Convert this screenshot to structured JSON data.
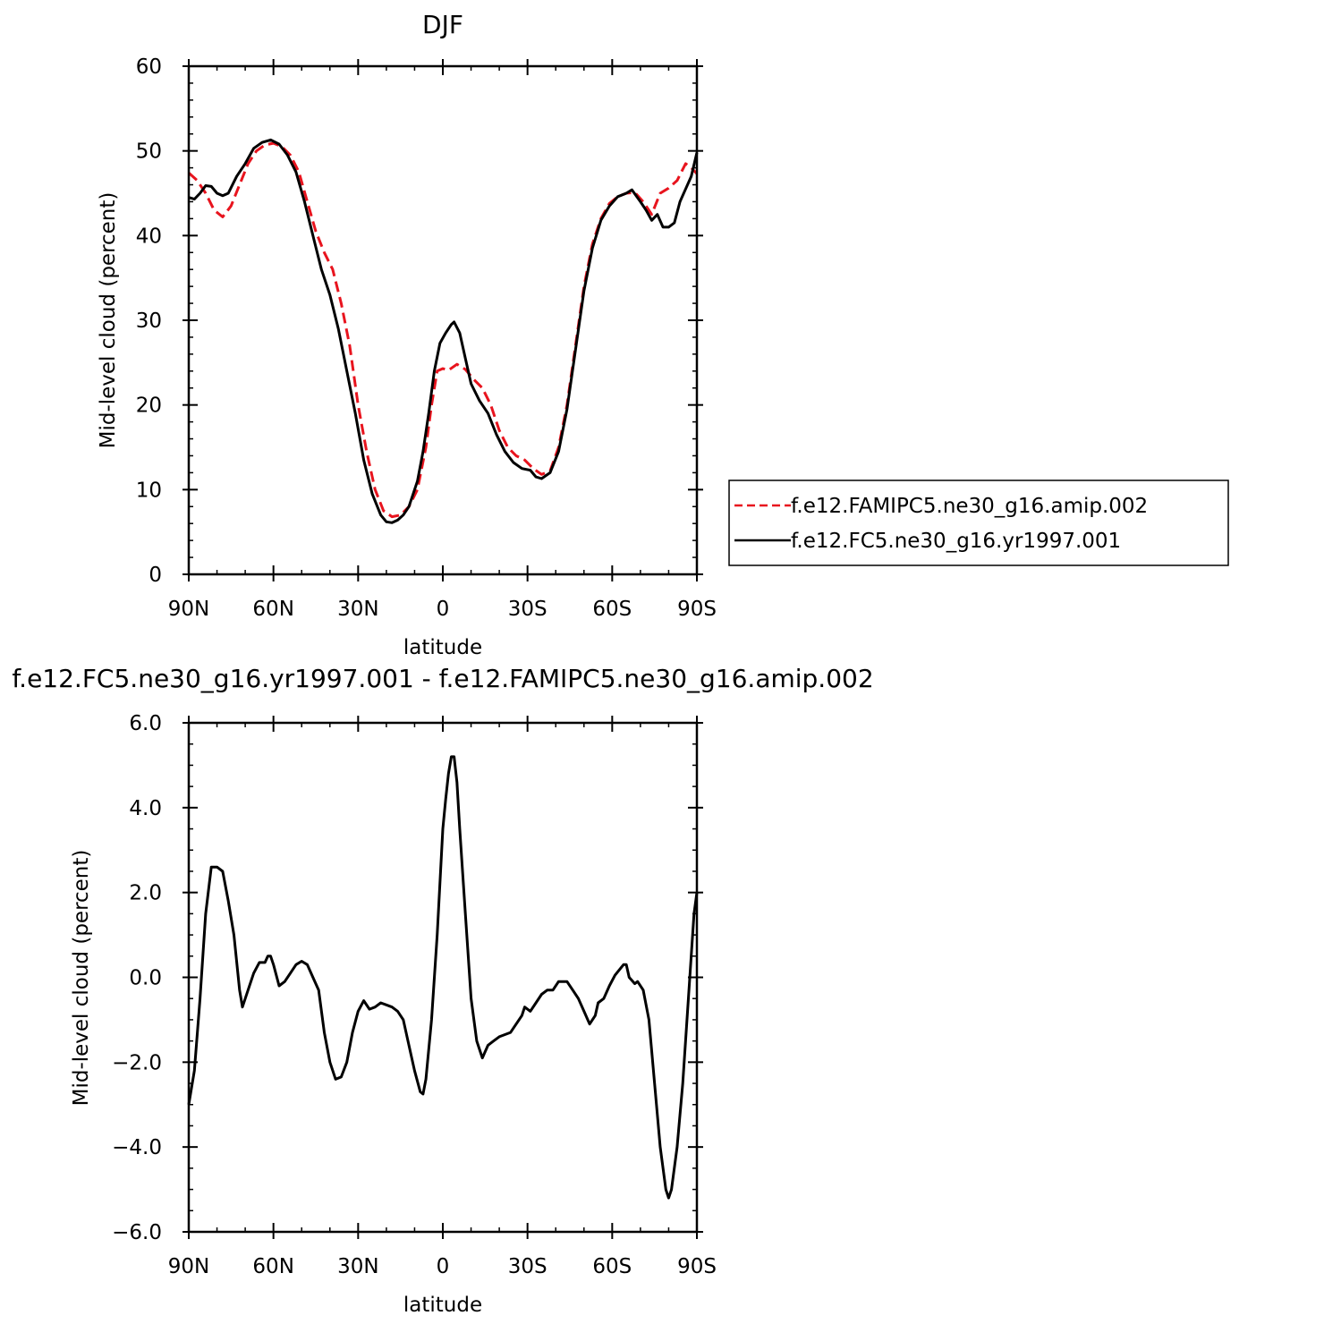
{
  "chart_data": [
    {
      "type": "line",
      "title": "DJF",
      "xlabel": "latitude",
      "ylabel": "Mid-level cloud (percent)",
      "xlim": [
        -90,
        90
      ],
      "ylim": [
        0,
        60
      ],
      "xticks": [
        -90,
        -60,
        -30,
        0,
        30,
        60,
        90
      ],
      "xtick_labels": [
        "90N",
        "60N",
        "30N",
        "0",
        "30S",
        "60S",
        "90S"
      ],
      "yticks": [
        0,
        10,
        20,
        30,
        40,
        50,
        60
      ],
      "ytick_labels": [
        "0",
        "10",
        "20",
        "30",
        "40",
        "50",
        "60"
      ],
      "legend_position": "right",
      "series": [
        {
          "name": "f.e12.FAMIPC5.ne30_g16.amip.002",
          "color": "#e8141e",
          "dash": "dashed",
          "points": [
            [
              -90,
              47.4
            ],
            [
              -87,
              46.5
            ],
            [
              -84,
              45.0
            ],
            [
              -81,
              43.0
            ],
            [
              -78,
              42.2
            ],
            [
              -75,
              43.5
            ],
            [
              -72,
              46.0
            ],
            [
              -69,
              48.5
            ],
            [
              -66,
              50.0
            ],
            [
              -63,
              50.7
            ],
            [
              -60,
              50.9
            ],
            [
              -57,
              50.5
            ],
            [
              -54,
              49.5
            ],
            [
              -51,
              47.5
            ],
            [
              -48,
              44.0
            ],
            [
              -45,
              40.5
            ],
            [
              -42,
              38.0
            ],
            [
              -39,
              36.0
            ],
            [
              -36,
              32.0
            ],
            [
              -33,
              27.0
            ],
            [
              -30,
              20.0
            ],
            [
              -27,
              14.5
            ],
            [
              -24,
              10.0
            ],
            [
              -21,
              7.5
            ],
            [
              -18,
              6.8
            ],
            [
              -15,
              7.0
            ],
            [
              -12,
              8.0
            ],
            [
              -9,
              10.0
            ],
            [
              -6,
              15.0
            ],
            [
              -4,
              20.0
            ],
            [
              -2,
              24.0
            ],
            [
              0,
              24.3
            ],
            [
              2,
              24.1
            ],
            [
              5,
              24.8
            ],
            [
              8,
              24.2
            ],
            [
              11,
              23.0
            ],
            [
              14,
              22.0
            ],
            [
              17,
              20.0
            ],
            [
              20,
              17.0
            ],
            [
              23,
              15.0
            ],
            [
              26,
              14.0
            ],
            [
              29,
              13.5
            ],
            [
              32,
              12.5
            ],
            [
              35,
              11.8
            ],
            [
              38,
              12.2
            ],
            [
              41,
              15.0
            ],
            [
              44,
              20.0
            ],
            [
              47,
              27.0
            ],
            [
              50,
              34.0
            ],
            [
              53,
              39.0
            ],
            [
              56,
              42.0
            ],
            [
              59,
              43.8
            ],
            [
              62,
              44.6
            ],
            [
              65,
              45.0
            ],
            [
              68,
              45.1
            ],
            [
              71,
              44.0
            ],
            [
              74,
              42.5
            ],
            [
              77,
              45.0
            ],
            [
              80,
              45.6
            ],
            [
              83,
              46.5
            ],
            [
              86,
              48.5
            ],
            [
              88,
              48.0
            ],
            [
              90,
              47.3
            ]
          ]
        },
        {
          "name": "f.e12.FC5.ne30_g16.yr1997.001",
          "color": "#000000",
          "dash": "solid",
          "points": [
            [
              -90,
              44.5
            ],
            [
              -88,
              44.3
            ],
            [
              -86,
              45.0
            ],
            [
              -84,
              45.9
            ],
            [
              -82,
              45.8
            ],
            [
              -80,
              45.0
            ],
            [
              -78,
              44.7
            ],
            [
              -76,
              45.0
            ],
            [
              -73,
              47.0
            ],
            [
              -70,
              48.5
            ],
            [
              -67,
              50.3
            ],
            [
              -64,
              51.0
            ],
            [
              -61,
              51.3
            ],
            [
              -58,
              50.8
            ],
            [
              -55,
              49.5
            ],
            [
              -52,
              47.5
            ],
            [
              -49,
              44.0
            ],
            [
              -46,
              40.0
            ],
            [
              -43,
              36.0
            ],
            [
              -40,
              33.0
            ],
            [
              -37,
              29.0
            ],
            [
              -34,
              24.0
            ],
            [
              -31,
              19.0
            ],
            [
              -28,
              13.5
            ],
            [
              -25,
              9.5
            ],
            [
              -22,
              7.0
            ],
            [
              -20,
              6.2
            ],
            [
              -18,
              6.1
            ],
            [
              -16,
              6.4
            ],
            [
              -14,
              7.0
            ],
            [
              -12,
              8.0
            ],
            [
              -9,
              11.0
            ],
            [
              -7,
              14.5
            ],
            [
              -5,
              19.0
            ],
            [
              -3,
              24.0
            ],
            [
              -1,
              27.3
            ],
            [
              1,
              28.5
            ],
            [
              3,
              29.5
            ],
            [
              4,
              29.8
            ],
            [
              6,
              28.5
            ],
            [
              8,
              25.5
            ],
            [
              10,
              22.5
            ],
            [
              13,
              20.5
            ],
            [
              16,
              19.0
            ],
            [
              19,
              16.5
            ],
            [
              22,
              14.5
            ],
            [
              25,
              13.2
            ],
            [
              28,
              12.5
            ],
            [
              31,
              12.3
            ],
            [
              33,
              11.5
            ],
            [
              35,
              11.3
            ],
            [
              38,
              12.0
            ],
            [
              41,
              14.5
            ],
            [
              44,
              19.5
            ],
            [
              47,
              26.5
            ],
            [
              50,
              33.5
            ],
            [
              53,
              38.5
            ],
            [
              56,
              41.8
            ],
            [
              59,
              43.5
            ],
            [
              62,
              44.6
            ],
            [
              65,
              45.0
            ],
            [
              67,
              45.4
            ],
            [
              70,
              44.0
            ],
            [
              72,
              43.0
            ],
            [
              74,
              41.8
            ],
            [
              76,
              42.5
            ],
            [
              78,
              41.0
            ],
            [
              80,
              41.0
            ],
            [
              82,
              41.5
            ],
            [
              84,
              44.0
            ],
            [
              86,
              45.5
            ],
            [
              88,
              47.0
            ],
            [
              90,
              49.8
            ]
          ]
        }
      ]
    },
    {
      "type": "line",
      "title": "f.e12.FC5.ne30_g16.yr1997.001 - f.e12.FAMIPC5.ne30_g16.amip.002",
      "xlabel": "latitude",
      "ylabel": "Mid-level cloud (percent)",
      "xlim": [
        -90,
        90
      ],
      "ylim": [
        -6,
        6
      ],
      "xticks": [
        -90,
        -60,
        -30,
        0,
        30,
        60,
        90
      ],
      "xtick_labels": [
        "90N",
        "60N",
        "30N",
        "0",
        "30S",
        "60S",
        "90S"
      ],
      "yticks": [
        -6,
        -4,
        -2,
        0,
        2,
        4,
        6
      ],
      "ytick_labels": [
        "−6.0",
        "−4.0",
        "−2.0",
        "0.0",
        "2.0",
        "4.0",
        "6.0"
      ],
      "series": [
        {
          "color": "#000000",
          "dash": "solid",
          "points": [
            [
              -90,
              -3.0
            ],
            [
              -88,
              -2.2
            ],
            [
              -86,
              -0.5
            ],
            [
              -84,
              1.5
            ],
            [
              -82,
              2.6
            ],
            [
              -80,
              2.6
            ],
            [
              -78,
              2.5
            ],
            [
              -76,
              1.8
            ],
            [
              -74,
              1.0
            ],
            [
              -72,
              -0.3
            ],
            [
              -71,
              -0.7
            ],
            [
              -69,
              -0.3
            ],
            [
              -67,
              0.1
            ],
            [
              -65,
              0.35
            ],
            [
              -63,
              0.35
            ],
            [
              -62,
              0.5
            ],
            [
              -61,
              0.5
            ],
            [
              -60,
              0.3
            ],
            [
              -58,
              -0.2
            ],
            [
              -56,
              -0.1
            ],
            [
              -54,
              0.1
            ],
            [
              -52,
              0.3
            ],
            [
              -50,
              0.38
            ],
            [
              -48,
              0.3
            ],
            [
              -46,
              0.0
            ],
            [
              -44,
              -0.3
            ],
            [
              -42,
              -1.3
            ],
            [
              -40,
              -2.0
            ],
            [
              -38,
              -2.4
            ],
            [
              -36,
              -2.35
            ],
            [
              -34,
              -2.0
            ],
            [
              -32,
              -1.3
            ],
            [
              -30,
              -0.8
            ],
            [
              -28,
              -0.55
            ],
            [
              -26,
              -0.75
            ],
            [
              -24,
              -0.7
            ],
            [
              -22,
              -0.6
            ],
            [
              -20,
              -0.65
            ],
            [
              -18,
              -0.7
            ],
            [
              -16,
              -0.8
            ],
            [
              -14,
              -1.0
            ],
            [
              -12,
              -1.6
            ],
            [
              -10,
              -2.2
            ],
            [
              -8,
              -2.7
            ],
            [
              -7,
              -2.75
            ],
            [
              -6,
              -2.4
            ],
            [
              -4,
              -1.0
            ],
            [
              -2,
              1.0
            ],
            [
              0,
              3.5
            ],
            [
              1,
              4.2
            ],
            [
              2,
              4.8
            ],
            [
              3,
              5.2
            ],
            [
              4,
              5.2
            ],
            [
              5,
              4.6
            ],
            [
              6,
              3.5
            ],
            [
              8,
              1.5
            ],
            [
              10,
              -0.5
            ],
            [
              12,
              -1.5
            ],
            [
              14,
              -1.9
            ],
            [
              16,
              -1.6
            ],
            [
              18,
              -1.5
            ],
            [
              20,
              -1.4
            ],
            [
              22,
              -1.35
            ],
            [
              24,
              -1.3
            ],
            [
              26,
              -1.1
            ],
            [
              28,
              -0.9
            ],
            [
              29,
              -0.7
            ],
            [
              31,
              -0.8
            ],
            [
              33,
              -0.6
            ],
            [
              35,
              -0.4
            ],
            [
              37,
              -0.3
            ],
            [
              39,
              -0.3
            ],
            [
              41,
              -0.1
            ],
            [
              44,
              -0.1
            ],
            [
              46,
              -0.3
            ],
            [
              48,
              -0.5
            ],
            [
              50,
              -0.8
            ],
            [
              52,
              -1.1
            ],
            [
              54,
              -0.9
            ],
            [
              55,
              -0.6
            ],
            [
              57,
              -0.5
            ],
            [
              59,
              -0.2
            ],
            [
              61,
              0.05
            ],
            [
              64,
              0.3
            ],
            [
              65,
              0.3
            ],
            [
              66,
              0.0
            ],
            [
              68,
              -0.15
            ],
            [
              69,
              -0.1
            ],
            [
              71,
              -0.3
            ],
            [
              73,
              -1.0
            ],
            [
              75,
              -2.5
            ],
            [
              77,
              -4.0
            ],
            [
              79,
              -5.0
            ],
            [
              80,
              -5.2
            ],
            [
              81,
              -5.0
            ],
            [
              83,
              -4.0
            ],
            [
              85,
              -2.5
            ],
            [
              87,
              -0.5
            ],
            [
              89,
              1.5
            ],
            [
              90,
              2.0
            ]
          ]
        }
      ]
    }
  ]
}
